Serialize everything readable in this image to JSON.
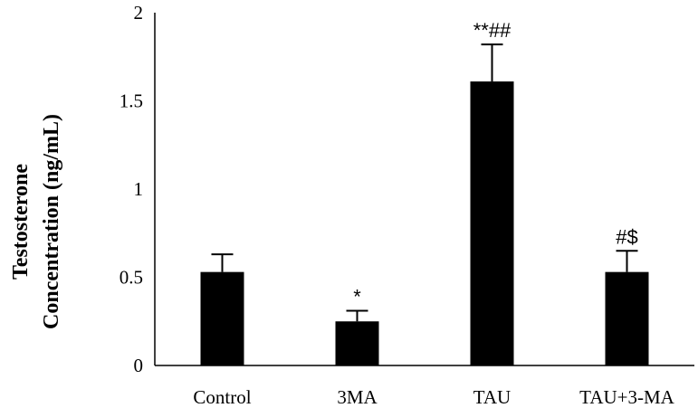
{
  "chart_data": {
    "type": "bar",
    "title": "",
    "xlabel": "",
    "ylabel_lines": [
      "Testosterone",
      "Concentration (ng/mL)"
    ],
    "categories": [
      "Control",
      "3MA",
      "TAU",
      "TAU+3-MA"
    ],
    "values": [
      0.53,
      0.25,
      1.61,
      0.53
    ],
    "errors": [
      0.1,
      0.06,
      0.21,
      0.12
    ],
    "annotations": [
      "",
      "*",
      "**##",
      "#$"
    ],
    "ylim": [
      0,
      2
    ],
    "yticks": [
      0,
      0.5,
      1,
      1.5,
      2
    ],
    "ytick_labels": [
      "0",
      "0.5",
      "1",
      "1.5",
      "2"
    ],
    "bar_color": "#000000",
    "grid": false,
    "legend": "none"
  }
}
